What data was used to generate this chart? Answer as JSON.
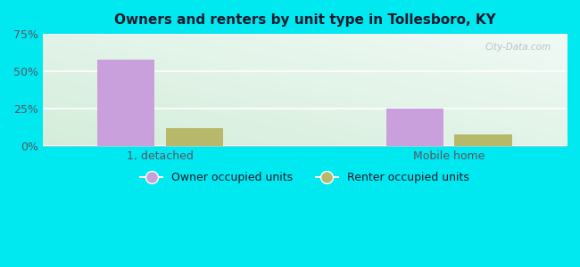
{
  "title": "Owners and renters by unit type in Tollesboro, KY",
  "categories": [
    "1, detached",
    "Mobile home"
  ],
  "owner_values": [
    58,
    25
  ],
  "renter_values": [
    12,
    8
  ],
  "owner_color": "#c9a0dc",
  "renter_color": "#b8b86a",
  "ylim": [
    0,
    75
  ],
  "yticks": [
    0,
    25,
    50,
    75
  ],
  "ytick_labels": [
    "0%",
    "25%",
    "50%",
    "75%"
  ],
  "legend_owner": "Owner occupied units",
  "legend_renter": "Renter occupied units",
  "outer_color": "#00e8f0",
  "title_color": "#1a1a2e",
  "tick_color": "#555566",
  "bar_width": 0.32,
  "group_positions": [
    1.0,
    2.6
  ],
  "xlim": [
    0.35,
    3.25
  ],
  "watermark": "City-Data.com",
  "bg_left_color": "#d8eeda",
  "bg_right_color": "#e8f8f8"
}
